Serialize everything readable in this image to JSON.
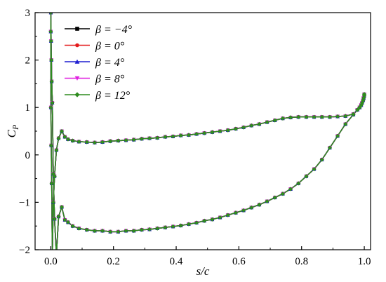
{
  "chart_data": {
    "type": "line",
    "xlabel": "s/c",
    "ylabel": "C",
    "ylabel_sub": "P",
    "xlim": [
      -0.05,
      1.02
    ],
    "ylim": [
      -2,
      3
    ],
    "xticks": [
      0.0,
      0.2,
      0.4,
      0.6,
      0.8,
      1.0
    ],
    "yticks": [
      -2,
      -1,
      0,
      1,
      2,
      3
    ],
    "xtick_labels": [
      "0.0",
      "0.2",
      "0.4",
      "0.6",
      "0.8",
      "1.0"
    ],
    "ytick_labels": [
      "−2",
      "−1",
      "0",
      "1",
      "2",
      "3"
    ],
    "grid": false,
    "legend_position": "top-left",
    "series": [
      {
        "name": "β = −4°",
        "color": "#000000",
        "marker": "square"
      },
      {
        "name": "β = 0°",
        "color": "#e31a1c",
        "marker": "circle"
      },
      {
        "name": "β = 4°",
        "color": "#1f1fd1",
        "marker": "triangle-up"
      },
      {
        "name": "β = 8°",
        "color": "#e01ee0",
        "marker": "triangle-down"
      },
      {
        "name": "β = 12°",
        "color": "#2e8b1f",
        "marker": "diamond"
      }
    ],
    "curve": {
      "x": [
        1.0,
        0.998,
        0.996,
        0.993,
        0.99,
        0.985,
        0.978,
        0.965,
        0.94,
        0.915,
        0.89,
        0.865,
        0.84,
        0.815,
        0.79,
        0.765,
        0.74,
        0.715,
        0.69,
        0.665,
        0.64,
        0.615,
        0.59,
        0.565,
        0.54,
        0.515,
        0.49,
        0.465,
        0.44,
        0.415,
        0.39,
        0.365,
        0.34,
        0.315,
        0.29,
        0.265,
        0.24,
        0.215,
        0.19,
        0.165,
        0.14,
        0.115,
        0.09,
        0.07,
        0.055,
        0.045,
        0.035,
        0.025,
        0.018,
        0.012,
        0.008,
        0.005,
        0.003,
        0.0015,
        0.0005,
        0.0,
        0.0004,
        0.001,
        0.002,
        0.003,
        0.005,
        0.008,
        0.012,
        0.018,
        0.025,
        0.035,
        0.045,
        0.055,
        0.07,
        0.09,
        0.115,
        0.14,
        0.165,
        0.19,
        0.215,
        0.24,
        0.265,
        0.29,
        0.315,
        0.34,
        0.365,
        0.39,
        0.415,
        0.44,
        0.465,
        0.49,
        0.515,
        0.54,
        0.565,
        0.59,
        0.615,
        0.64,
        0.665,
        0.69,
        0.715,
        0.74,
        0.765,
        0.79,
        0.815,
        0.84,
        0.865,
        0.89,
        0.915,
        0.94,
        0.965,
        0.978,
        0.985,
        0.99,
        0.993,
        0.996,
        0.998,
        1.0
      ],
      "y": [
        1.25,
        1.2,
        1.15,
        1.1,
        1.05,
        1.0,
        0.95,
        0.86,
        0.82,
        0.81,
        0.8,
        0.8,
        0.8,
        0.8,
        0.8,
        0.79,
        0.77,
        0.73,
        0.69,
        0.65,
        0.62,
        0.58,
        0.55,
        0.52,
        0.5,
        0.48,
        0.46,
        0.44,
        0.42,
        0.41,
        0.39,
        0.38,
        0.36,
        0.35,
        0.34,
        0.32,
        0.31,
        0.3,
        0.29,
        0.27,
        0.26,
        0.27,
        0.28,
        0.3,
        0.33,
        0.38,
        0.5,
        0.35,
        0.1,
        -0.45,
        -1.0,
        -2.1,
        -0.6,
        0.2,
        1.0,
        2.6,
        3.0,
        2.4,
        2.0,
        1.55,
        1.1,
        -0.4,
        -1.35,
        -2.1,
        -1.3,
        -1.1,
        -1.37,
        -1.42,
        -1.5,
        -1.55,
        -1.58,
        -1.6,
        -1.6,
        -1.62,
        -1.62,
        -1.6,
        -1.6,
        -1.58,
        -1.57,
        -1.55,
        -1.53,
        -1.51,
        -1.49,
        -1.46,
        -1.43,
        -1.39,
        -1.36,
        -1.32,
        -1.27,
        -1.22,
        -1.17,
        -1.11,
        -1.05,
        -0.98,
        -0.9,
        -0.82,
        -0.72,
        -0.6,
        -0.45,
        -0.3,
        -0.1,
        0.15,
        0.4,
        0.65,
        0.85,
        0.95,
        1.0,
        1.05,
        1.1,
        1.15,
        1.2,
        1.28
      ]
    }
  }
}
